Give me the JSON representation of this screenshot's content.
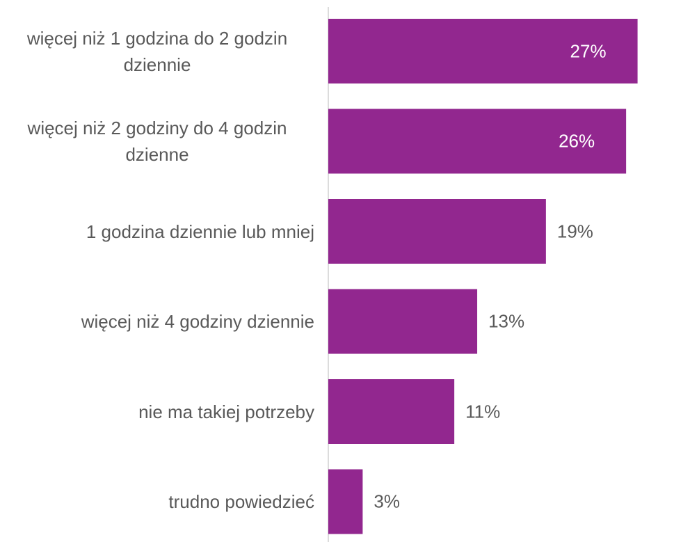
{
  "chart_data": {
    "type": "barh",
    "categories": [
      "więcej niż 1 godzina do 2 godzin dziennie",
      "więcej niż 2 godziny do 4 godzin dzienne",
      "1 godzina dziennie lub mniej",
      "więcej niż 4 godziny dziennie",
      "nie ma takiej potrzeby",
      "trudno powiedzieć"
    ],
    "values": [
      27,
      26,
      19,
      13,
      11,
      3
    ],
    "value_labels": [
      "27%",
      "26%",
      "19%",
      "13%",
      "11%",
      "3%"
    ],
    "color": "#92278f",
    "xlim": [
      0,
      30
    ]
  }
}
